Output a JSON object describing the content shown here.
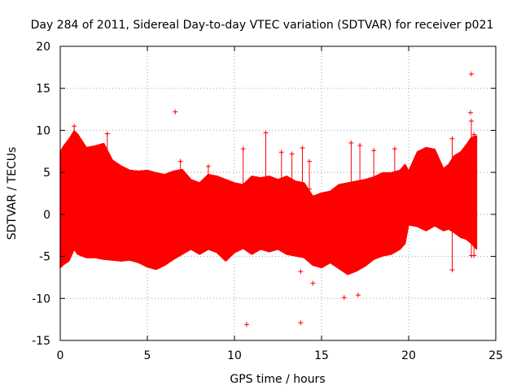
{
  "chart_data": {
    "type": "scatter",
    "title": "Day 284 of 2011, Sidereal Day-to-day VTEC variation (SDTVAR) for receiver p021",
    "xlabel": "GPS time / hours",
    "ylabel": "SDTVAR / TECUs",
    "xlim": [
      0,
      25
    ],
    "ylim": [
      -15,
      20
    ],
    "xticks": [
      0,
      5,
      10,
      15,
      20,
      25
    ],
    "yticks": [
      -15,
      -10,
      -5,
      0,
      5,
      10,
      15,
      20
    ],
    "grid": true,
    "color": "#ff0000",
    "marker": "plus",
    "envelope": {
      "x": [
        0.0,
        0.2,
        0.5,
        0.8,
        1.0,
        1.5,
        2.0,
        2.5,
        3.0,
        3.5,
        4.0,
        4.5,
        5.0,
        5.5,
        6.0,
        6.5,
        7.0,
        7.5,
        8.0,
        8.5,
        9.0,
        9.5,
        10.0,
        10.5,
        11.0,
        11.5,
        12.0,
        12.5,
        13.0,
        13.5,
        14.0,
        14.5,
        15.0,
        15.5,
        16.0,
        16.5,
        17.0,
        17.5,
        18.0,
        18.5,
        19.0,
        19.5,
        19.8,
        20.0,
        20.5,
        21.0,
        21.5,
        22.0,
        22.3,
        22.6,
        23.0,
        23.3,
        23.6,
        23.9
      ],
      "upper": [
        7.5,
        8.2,
        9.0,
        10.0,
        9.6,
        8.0,
        8.2,
        8.5,
        6.5,
        5.8,
        5.3,
        5.2,
        5.3,
        5.0,
        4.8,
        5.2,
        5.4,
        4.2,
        3.8,
        4.8,
        4.6,
        4.2,
        3.8,
        3.6,
        4.6,
        4.4,
        4.6,
        4.2,
        4.6,
        4.0,
        3.8,
        2.2,
        2.6,
        2.8,
        3.6,
        3.8,
        4.0,
        4.2,
        4.5,
        5.0,
        5.0,
        5.3,
        6.0,
        5.2,
        7.5,
        8.0,
        7.8,
        5.5,
        6.0,
        7.0,
        7.5,
        8.3,
        9.2,
        9.4
      ],
      "lower": [
        -6.4,
        -6.0,
        -5.6,
        -4.2,
        -4.8,
        -5.2,
        -5.2,
        -5.4,
        -5.5,
        -5.6,
        -5.5,
        -5.8,
        -6.3,
        -6.6,
        -6.1,
        -5.4,
        -4.8,
        -4.2,
        -4.8,
        -4.2,
        -4.6,
        -5.6,
        -4.6,
        -4.1,
        -4.8,
        -4.2,
        -4.5,
        -4.2,
        -4.8,
        -5.0,
        -5.2,
        -6.1,
        -6.4,
        -5.8,
        -6.5,
        -7.2,
        -6.8,
        -6.2,
        -5.4,
        -5.0,
        -4.8,
        -4.2,
        -3.5,
        -1.3,
        -1.5,
        -2.0,
        -1.4,
        -2.0,
        -1.8,
        -2.2,
        -2.8,
        -3.0,
        -3.5,
        -4.2
      ]
    },
    "outliers": {
      "x": [
        6.6,
        13.8,
        14.5,
        16.3,
        17.1,
        10.7,
        13.8,
        23.6,
        23.55
      ],
      "y": [
        12.2,
        -6.8,
        -8.2,
        -9.9,
        -9.6,
        -13.1,
        -12.9,
        16.7,
        12.1
      ]
    },
    "spikes": [
      {
        "x": 0.8,
        "lo": -2.0,
        "hi": 10.5
      },
      {
        "x": 2.7,
        "lo": 3.0,
        "hi": 9.6
      },
      {
        "x": 6.9,
        "lo": 2.0,
        "hi": 6.3
      },
      {
        "x": 8.5,
        "lo": 2.0,
        "hi": 5.7
      },
      {
        "x": 10.5,
        "lo": -1.0,
        "hi": 7.8
      },
      {
        "x": 11.8,
        "lo": 1.0,
        "hi": 9.7
      },
      {
        "x": 12.7,
        "lo": -1.0,
        "hi": 7.4
      },
      {
        "x": 13.3,
        "lo": 3.0,
        "hi": 7.2
      },
      {
        "x": 13.9,
        "lo": 3.0,
        "hi": 7.9
      },
      {
        "x": 14.3,
        "lo": 3.0,
        "hi": 6.3
      },
      {
        "x": 16.7,
        "lo": -3.0,
        "hi": 8.5
      },
      {
        "x": 17.2,
        "lo": -3.0,
        "hi": 8.2
      },
      {
        "x": 18.0,
        "lo": 2.0,
        "hi": 7.6
      },
      {
        "x": 19.2,
        "lo": 3.0,
        "hi": 7.8
      },
      {
        "x": 22.5,
        "lo": -6.6,
        "hi": 9.0
      },
      {
        "x": 23.6,
        "lo": -4.9,
        "hi": 11.1
      },
      {
        "x": 23.75,
        "lo": -4.9,
        "hi": 9.5
      }
    ]
  }
}
